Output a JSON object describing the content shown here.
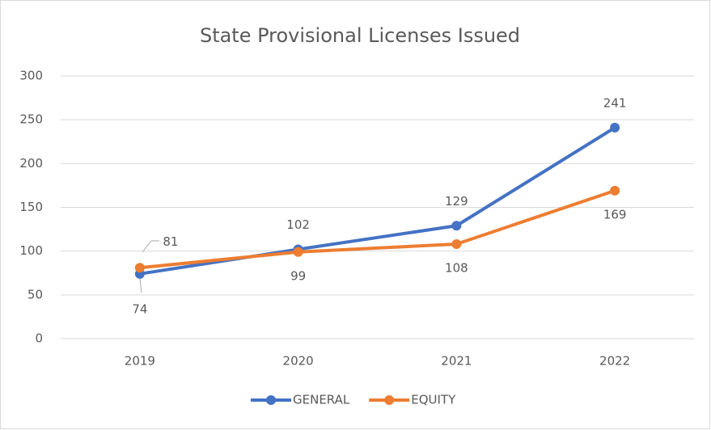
{
  "chart_data": {
    "type": "line",
    "title": "State Provisional Licenses Issued",
    "categories": [
      "2019",
      "2020",
      "2021",
      "2022"
    ],
    "series": [
      {
        "name": "GENERAL",
        "color": "#4472c4",
        "values": [
          74,
          102,
          129,
          241
        ]
      },
      {
        "name": "EQUITY",
        "color": "#ed7d31",
        "values": [
          81,
          99,
          108,
          169
        ]
      }
    ],
    "ylim": [
      0,
      300
    ],
    "yticks": [
      0,
      50,
      100,
      150,
      200,
      250,
      300
    ],
    "grid": true,
    "legend": "bottom"
  }
}
